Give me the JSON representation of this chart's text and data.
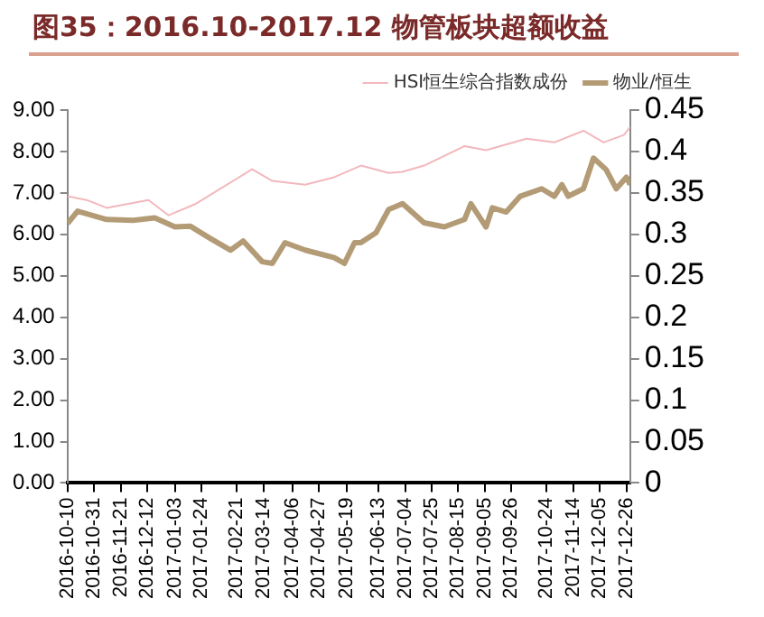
{
  "chart_data": {
    "type": "line",
    "title": "图35：2016.10-2017.12 物管板块超额收益",
    "xlim": [
      "2016-10-10",
      "2017-12-29"
    ],
    "xticks": [
      "2016-10-10",
      "2016-10-31",
      "2016-11-21",
      "2016-12-12",
      "2017-01-03",
      "2017-01-24",
      "2017-02-21",
      "2017-03-14",
      "2017-04-06",
      "2017-04-27",
      "2017-05-19",
      "2017-06-13",
      "2017-07-04",
      "2017-07-25",
      "2017-08-15",
      "2017-09-05",
      "2017-09-26",
      "2017-10-24",
      "2017-11-14",
      "2017-12-05",
      "2017-12-26"
    ],
    "ylim": [
      0,
      9
    ],
    "yticks": [
      {
        "value": 0,
        "label": "0.00"
      },
      {
        "value": 1,
        "label": "1.00"
      },
      {
        "value": 2,
        "label": "2.00"
      },
      {
        "value": 3,
        "label": "3.00"
      },
      {
        "value": 4,
        "label": "4.00"
      },
      {
        "value": 5,
        "label": "5.00"
      },
      {
        "value": 6,
        "label": "6.00"
      },
      {
        "value": 7,
        "label": "7.00"
      },
      {
        "value": 8,
        "label": "8.00"
      },
      {
        "value": 9,
        "label": "9.00"
      }
    ],
    "y2lim": [
      0,
      0.45
    ],
    "y2ticks": [
      0,
      0.05,
      0.1,
      0.15,
      0.2,
      0.25,
      0.3,
      0.35,
      0.4,
      0.45
    ],
    "grid": false,
    "legend": "top",
    "marker": "none",
    "line_style": "solid",
    "series": [
      {
        "name": "HSI恒生综合指数成份",
        "color": "#f2b8bd",
        "x": [
          "2016-10-10",
          "2016-10-25",
          "2016-11-10",
          "2016-11-26",
          "2016-12-13",
          "2016-12-29",
          "2017-01-19",
          "2017-02-10",
          "2017-03-05",
          "2017-03-21",
          "2017-04-16",
          "2017-05-09",
          "2017-05-30",
          "2017-06-21",
          "2017-07-02",
          "2017-07-19",
          "2017-08-20",
          "2017-09-06",
          "2017-10-08",
          "2017-10-30",
          "2017-11-22",
          "2017-12-08",
          "2017-12-24",
          "2017-12-29"
        ],
        "values": [
          6.92,
          6.83,
          6.64,
          6.73,
          6.83,
          6.46,
          6.73,
          7.14,
          7.57,
          7.29,
          7.2,
          7.38,
          7.66,
          7.48,
          7.51,
          7.66,
          8.13,
          8.03,
          8.31,
          8.22,
          8.5,
          8.22,
          8.4,
          8.59
        ]
      },
      {
        "name": "物业/恒生",
        "color": "#b39b76",
        "axis": "y2",
        "x": [
          "2016-10-10",
          "2016-10-18",
          "2016-11-10",
          "2016-12-01",
          "2016-12-18",
          "2017-01-03",
          "2017-01-15",
          "2017-01-31",
          "2017-02-16",
          "2017-02-26",
          "2017-03-13",
          "2017-03-21",
          "2017-03-31",
          "2017-04-16",
          "2017-05-09",
          "2017-05-17",
          "2017-05-25",
          "2017-05-30",
          "2017-06-11",
          "2017-06-21",
          "2017-07-02",
          "2017-07-19",
          "2017-08-04",
          "2017-08-20",
          "2017-08-25",
          "2017-09-06",
          "2017-09-11",
          "2017-09-22",
          "2017-10-03",
          "2017-10-20",
          "2017-10-30",
          "2017-11-05",
          "2017-11-10",
          "2017-11-22",
          "2017-11-30",
          "2017-12-10",
          "2017-12-18",
          "2017-12-26",
          "2017-12-29"
        ],
        "values": [
          0.313,
          0.328,
          0.318,
          0.317,
          0.32,
          0.309,
          0.31,
          0.295,
          0.281,
          0.292,
          0.267,
          0.265,
          0.29,
          0.281,
          0.272,
          0.265,
          0.29,
          0.29,
          0.302,
          0.33,
          0.337,
          0.314,
          0.309,
          0.318,
          0.337,
          0.309,
          0.332,
          0.327,
          0.346,
          0.355,
          0.346,
          0.36,
          0.346,
          0.355,
          0.392,
          0.378,
          0.355,
          0.369,
          0.36
        ]
      }
    ]
  }
}
